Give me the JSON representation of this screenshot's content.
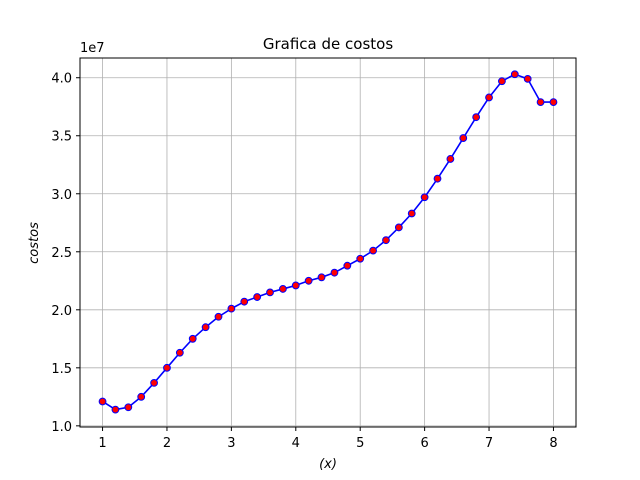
{
  "chart_data": {
    "type": "line",
    "title": "Grafica de costos",
    "xlabel": "(x)",
    "ylabel": "costos",
    "offset_label": "1e7",
    "scale": 10000000,
    "xlim": [
      0.65,
      8.35
    ],
    "ylim": [
      0.99,
      4.17
    ],
    "xticks": [
      1,
      2,
      3,
      4,
      5,
      6,
      7,
      8
    ],
    "xtick_labels": [
      "1",
      "2",
      "3",
      "4",
      "5",
      "6",
      "7",
      "8"
    ],
    "yticks": [
      1.0,
      1.5,
      2.0,
      2.5,
      3.0,
      3.5,
      4.0
    ],
    "ytick_labels": [
      "1.0",
      "1.5",
      "2.0",
      "2.5",
      "3.0",
      "3.5",
      "4.0"
    ],
    "grid": true,
    "series": [
      {
        "name": "",
        "line_color": "#0000ff",
        "marker_face": "#ff0000",
        "marker_edge": "#0000ff",
        "x": [
          1.0,
          1.2,
          1.4,
          1.6,
          1.8,
          2.0,
          2.2,
          2.4,
          2.6,
          2.8,
          3.0,
          3.2,
          3.4,
          3.6,
          3.8,
          4.0,
          4.2,
          4.4,
          4.6,
          4.8,
          5.0,
          5.2,
          5.4,
          5.6,
          5.8,
          6.0,
          6.2,
          6.4,
          6.6,
          6.8,
          7.0,
          7.2,
          7.4,
          7.6,
          7.8,
          8.0
        ],
        "y": [
          1.21,
          1.14,
          1.16,
          1.25,
          1.37,
          1.5,
          1.63,
          1.75,
          1.85,
          1.94,
          2.01,
          2.07,
          2.11,
          2.15,
          2.18,
          2.21,
          2.25,
          2.28,
          2.32,
          2.38,
          2.44,
          2.51,
          2.6,
          2.71,
          2.83,
          2.97,
          3.13,
          3.3,
          3.48,
          3.66,
          3.83,
          3.97,
          4.03,
          3.99,
          3.79,
          3.79
        ]
      }
    ]
  }
}
